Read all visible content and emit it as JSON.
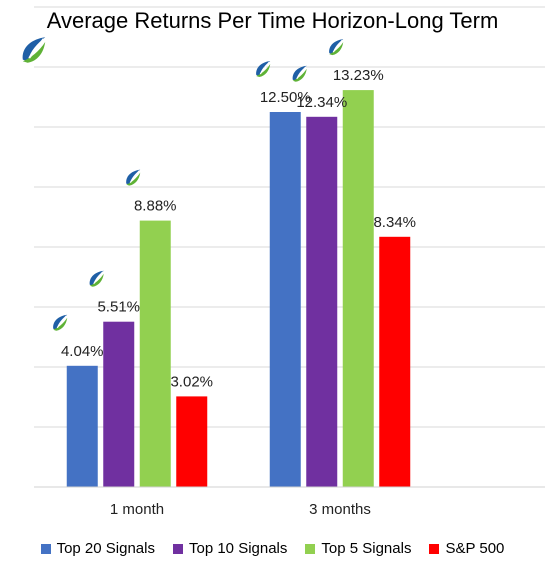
{
  "chart_data": {
    "type": "bar",
    "title": "Average Returns Per Time Horizon-Long Term",
    "categories": [
      "1 month",
      "3 months"
    ],
    "series": [
      {
        "name": "Top 20 Signals",
        "values": [
          4.04,
          12.5
        ],
        "labels": [
          "4.04%",
          "12.50%"
        ],
        "color": "#4472C4"
      },
      {
        "name": "Top 10 Signals",
        "values": [
          5.51,
          12.34
        ],
        "labels": [
          "5.51%",
          "12.34%"
        ],
        "color": "#7030A0"
      },
      {
        "name": "Top 5 Signals",
        "values": [
          8.88,
          13.23
        ],
        "labels": [
          "8.88%",
          "13.23%"
        ],
        "color": "#92D050"
      },
      {
        "name": "S&P 500",
        "values": [
          3.02,
          8.34
        ],
        "labels": [
          "3.02%",
          "8.34%"
        ],
        "color": "#FF0000"
      }
    ],
    "ylim": [
      0,
      16
    ],
    "grid": true,
    "legend": "bottom",
    "logo_icon": "swoosh-logo-icon"
  }
}
